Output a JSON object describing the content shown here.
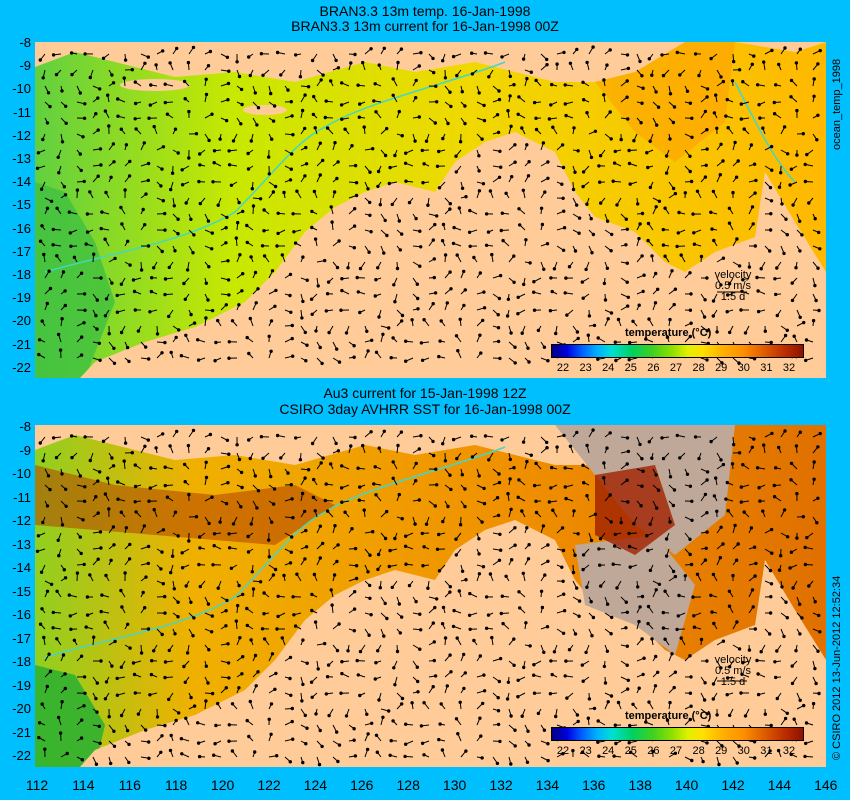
{
  "top_panel": {
    "title_line1": "BRAN3.3 13m temp. 16-Jan-1998",
    "title_line2": "BRAN3.3 13m current for 16-Jan-1998 00Z",
    "velocity_label": "velocity",
    "velocity_value": "0.5 m/s",
    "velocity_time": "1.5 d",
    "legend_title": "temperature (°C)",
    "side_label": "ocean_temp_1998"
  },
  "bottom_panel": {
    "title_line1": "Au3 current for 15-Jan-1998 12Z",
    "title_line2": "CSIRO 3day AVHRR SST for 16-Jan-1998 00Z",
    "velocity_label": "velocity",
    "velocity_value": "0.5 m/s",
    "velocity_time": "1.5 d",
    "legend_title": "temperature (°C)",
    "side_label": "© CSIRO 2012  13-Jun-2012 12:52:34"
  },
  "legend_ticks": [
    "22",
    "23",
    "24",
    "25",
    "26",
    "27",
    "28",
    "29",
    "30",
    "31",
    "32"
  ],
  "y_ticks": [
    "-8",
    "-9",
    "-10",
    "-11",
    "-12",
    "-13",
    "-14",
    "-15",
    "-16",
    "-17",
    "-18",
    "-19",
    "-20",
    "-21",
    "-22"
  ],
  "x_ticks": [
    "112",
    "114",
    "116",
    "118",
    "120",
    "122",
    "124",
    "126",
    "128",
    "130",
    "132",
    "134",
    "136",
    "138",
    "140",
    "142",
    "144",
    "146"
  ],
  "colors": {
    "background": "#00BFFF",
    "land": "#FFCC99",
    "bathymetry_contour": "#40D8C8",
    "no_data": "#C0A898"
  }
}
